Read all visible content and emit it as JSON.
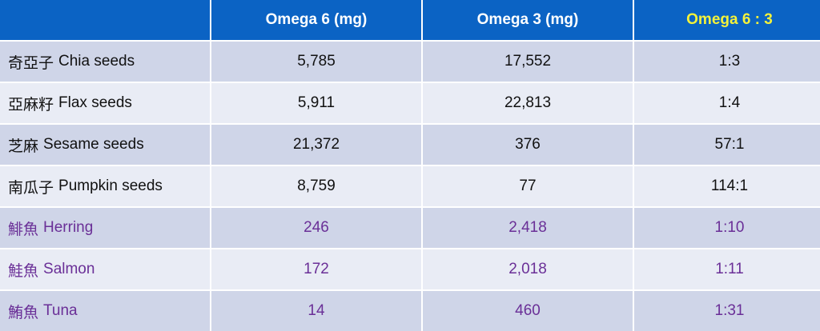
{
  "header": {
    "blank": "",
    "col1": "Omega 6 (mg)",
    "col2": "Omega 3 (mg)",
    "col3": "Omega 6 : 3"
  },
  "colors": {
    "header_bg": "#0b63c4",
    "header_text": "#ffffff",
    "ratio_header_text": "#f4f23a",
    "fish_text": "#6a2f97",
    "row_dark": "#cfd5e8",
    "row_light": "#e9ecf5"
  },
  "rows": [
    {
      "cjk": "奇亞子",
      "name": "Chia seeds",
      "omega6": "5,785",
      "omega3": "17,552",
      "ratio": "1:3"
    },
    {
      "cjk": "亞麻籽",
      "name": "Flax seeds",
      "omega6": "5,911",
      "omega3": "22,813",
      "ratio": "1:4"
    },
    {
      "cjk": "芝麻",
      "name": "Sesame seeds",
      "omega6": "21,372",
      "omega3": "376",
      "ratio": "57:1"
    },
    {
      "cjk": "南瓜子",
      "name": "Pumpkin seeds",
      "omega6": "8,759",
      "omega3": "77",
      "ratio": "114:1"
    },
    {
      "cjk": "鯡魚",
      "name": "Herring",
      "omega6": "246",
      "omega3": "2,418",
      "ratio": "1:10"
    },
    {
      "cjk": "鮭魚",
      "name": "Salmon",
      "omega6": "172",
      "omega3": "2,018",
      "ratio": "1:11"
    },
    {
      "cjk": "鮪魚",
      "name": "Tuna",
      "omega6": "14",
      "omega3": "460",
      "ratio": "1:31"
    }
  ]
}
